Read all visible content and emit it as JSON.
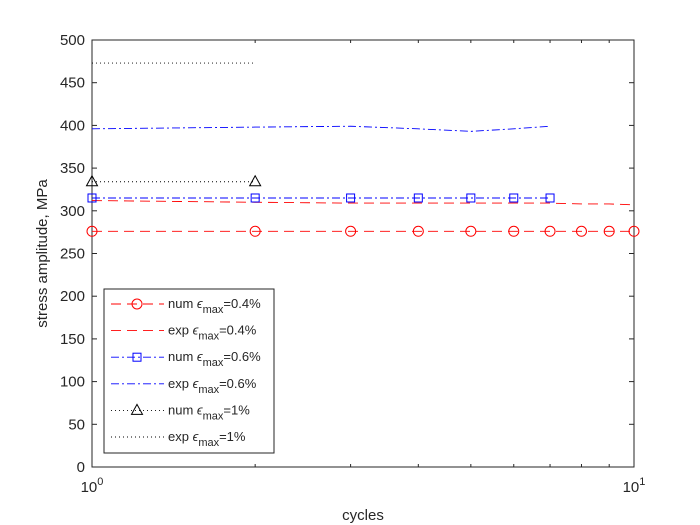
{
  "chart_data": {
    "type": "line",
    "xlabel": "cycles",
    "ylabel": "stress amplitude, MPa",
    "xscale": "log",
    "xlim": [
      1,
      10
    ],
    "ylim": [
      0,
      500
    ],
    "grid": false,
    "legend_position": "bottom-left",
    "x_ticks": [
      {
        "value": 1,
        "base": "10",
        "exp": "0"
      },
      {
        "value": 10,
        "base": "10",
        "exp": "1"
      }
    ],
    "y_ticks": [
      0,
      50,
      100,
      150,
      200,
      250,
      300,
      350,
      400,
      450,
      500
    ],
    "series": [
      {
        "label_prefix": "num ",
        "label_sub": "max",
        "label_suffix": "=0.4%",
        "color": "#ff0000",
        "dash": "10,6",
        "marker": "circle",
        "x": [
          1,
          2,
          3,
          4,
          5,
          6,
          7,
          8,
          9,
          10
        ],
        "y": [
          276,
          276,
          276,
          276,
          276,
          276,
          276,
          276,
          276,
          276
        ]
      },
      {
        "label_prefix": "exp ",
        "label_sub": "max",
        "label_suffix": "=0.4%",
        "color": "#ff0000",
        "dash": "10,6",
        "marker": "none",
        "x": [
          1,
          2,
          3,
          4,
          5,
          6,
          7,
          8,
          9,
          10
        ],
        "y": [
          312,
          310,
          309,
          309,
          309,
          309,
          309,
          308,
          308,
          307
        ]
      },
      {
        "label_prefix": "num ",
        "label_sub": "max",
        "label_suffix": "=0.6%",
        "color": "#0000ff",
        "dash": "8,3,2,3",
        "marker": "square",
        "x": [
          1,
          2,
          3,
          4,
          5,
          6,
          7
        ],
        "y": [
          315,
          315,
          315,
          315,
          315,
          315,
          315
        ]
      },
      {
        "label_prefix": "exp ",
        "label_sub": "max",
        "label_suffix": "=0.6%",
        "color": "#0000ff",
        "dash": "8,3,2,3",
        "marker": "none",
        "x": [
          1,
          2,
          3,
          4,
          5,
          6,
          7
        ],
        "y": [
          396,
          398,
          399,
          396,
          393,
          396,
          399
        ]
      },
      {
        "label_prefix": "num ",
        "label_sub": "max",
        "label_suffix": "=1%",
        "color": "#000000",
        "dash": "1,3",
        "marker": "triangle",
        "x": [
          1,
          2
        ],
        "y": [
          334,
          334
        ]
      },
      {
        "label_prefix": "exp ",
        "label_sub": "max",
        "label_suffix": "=1%",
        "color": "#000000",
        "dash": "1,3",
        "marker": "none",
        "x": [
          1,
          2
        ],
        "y": [
          473,
          473
        ]
      }
    ]
  }
}
